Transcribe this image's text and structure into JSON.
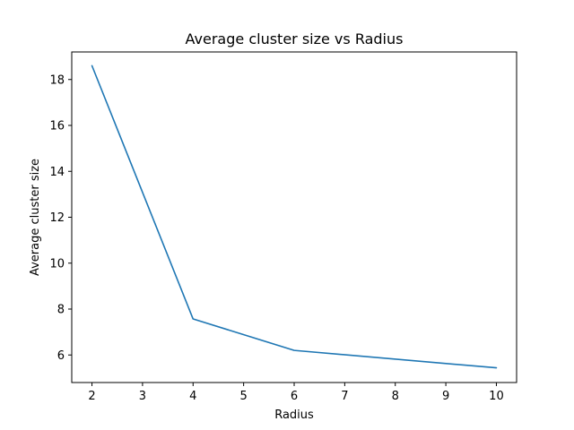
{
  "chart_data": {
    "type": "line",
    "title": "Average cluster size vs Radius",
    "xlabel": "Radius",
    "ylabel": "Average cluster size",
    "x": [
      2,
      4,
      6,
      10
    ],
    "series": [
      {
        "values": [
          18.6,
          7.57,
          6.2,
          5.44
        ]
      }
    ],
    "xlim": [
      1.6,
      10.4
    ],
    "ylim": [
      4.8,
      19.2
    ],
    "xticks": [
      2,
      3,
      4,
      5,
      6,
      7,
      8,
      9,
      10
    ],
    "yticks": [
      6,
      8,
      10,
      12,
      14,
      16,
      18
    ],
    "grid": false,
    "line_color": "#1f77b4"
  }
}
